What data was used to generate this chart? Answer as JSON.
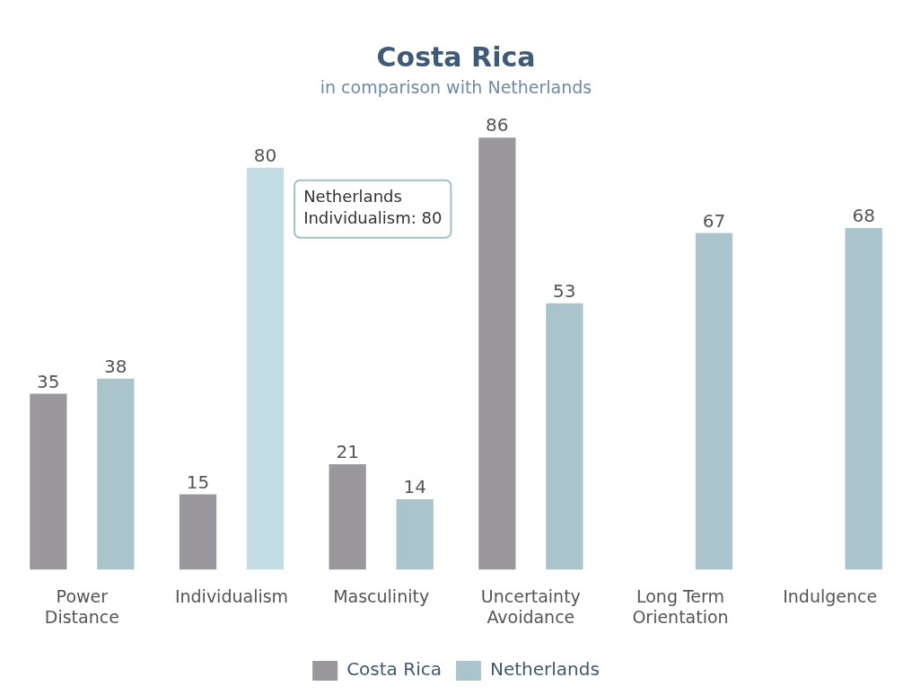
{
  "chart_data": {
    "type": "bar",
    "title": "Costa Rica",
    "subtitle": "in comparison with Netherlands",
    "categories": [
      "Power Distance",
      "Individualism",
      "Masculinity",
      "Uncertainty Avoidance",
      "Long Term Orientation",
      "Indulgence"
    ],
    "series": [
      {
        "name": "Costa Rica",
        "color": "#9a989d",
        "values": [
          35,
          15,
          21,
          86,
          null,
          null
        ]
      },
      {
        "name": "Netherlands",
        "color": "#a9c4cb",
        "colors": [
          "#a9c4cb",
          "#c2dde4",
          "#a9c4cb",
          "#a9c4cb",
          "#a9c4cb",
          "#a9c4cb"
        ],
        "values": [
          38,
          80,
          14,
          53,
          67,
          68
        ]
      }
    ],
    "data_labels": true,
    "legend": "bottom",
    "grid": false,
    "tick_labels": "x",
    "annotations": [
      "Netherlands Individualism: 80"
    ]
  }
}
